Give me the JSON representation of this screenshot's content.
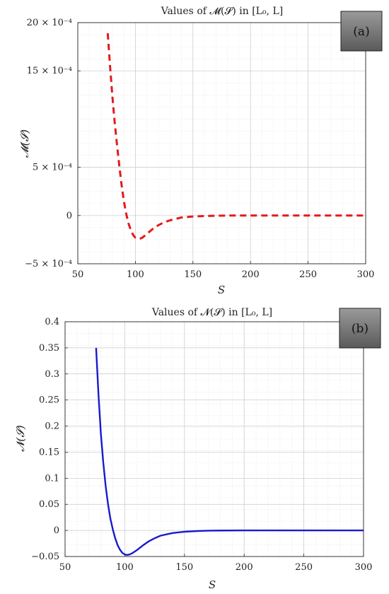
{
  "chart_data": [
    {
      "type": "line",
      "title": "Values of 𝓜(𝓢) in [L₀, L]",
      "panel_label": "(a)",
      "xlabel": "S",
      "ylabel": "𝓜(𝓢)",
      "xlim": [
        50,
        300
      ],
      "ylim": [
        -0.0005,
        0.002
      ],
      "x_ticks": [
        50,
        100,
        150,
        200,
        250,
        300
      ],
      "x_tick_labels": [
        "50",
        "100",
        "150",
        "200",
        "250",
        "300"
      ],
      "y_ticks": [
        -0.0005,
        0,
        0.0005,
        0.0015,
        0.002
      ],
      "y_tick_labels": [
        "−5 × 10⁻⁴",
        "0",
        "5 × 10⁻⁴",
        "15 × 10⁻⁴",
        "20 × 10⁻⁴"
      ],
      "grid": true,
      "series": [
        {
          "color": "#e41a1c",
          "line_style": "dashed",
          "x": [
            76,
            78,
            80,
            82,
            84,
            86,
            88,
            90,
            92,
            94,
            96,
            98,
            100,
            102,
            104,
            106,
            110,
            115,
            120,
            125,
            130,
            140,
            150,
            160,
            170,
            180,
            200,
            220,
            250,
            300
          ],
          "y": [
            0.00189,
            0.00155,
            0.00124,
            0.00097,
            0.00074,
            0.00052,
            0.00032,
            0.00015,
            2e-05,
            -8e-05,
            -0.00015,
            -0.0002,
            -0.00023,
            -0.00024,
            -0.00024,
            -0.00023,
            -0.00019,
            -0.00014,
            -0.0001,
            -7e-05,
            -5e-05,
            -2e-05,
            -1e-05,
            -5e-06,
            -2e-06,
            0,
            0,
            0,
            0,
            0
          ]
        }
      ]
    },
    {
      "type": "line",
      "title": "Values of 𝓝(𝓢) in [L₀, L]",
      "panel_label": "(b)",
      "xlabel": "S",
      "ylabel": "𝓝(𝓢)",
      "xlim": [
        50,
        300
      ],
      "ylim": [
        -0.05,
        0.4
      ],
      "x_ticks": [
        50,
        100,
        150,
        200,
        250,
        300
      ],
      "x_tick_labels": [
        "50",
        "100",
        "150",
        "200",
        "250",
        "300"
      ],
      "y_ticks": [
        -0.05,
        0,
        0.05,
        0.1,
        0.15,
        0.2,
        0.25,
        0.3,
        0.35,
        0.4
      ],
      "y_tick_labels": [
        "−0.05",
        "0",
        "0.05",
        "0.1",
        "0.15",
        "0.2",
        "0.25",
        "0.3",
        "0.35",
        "0.4"
      ],
      "grid": true,
      "series": [
        {
          "color": "#1a1acc",
          "line_style": "solid",
          "x": [
            76,
            78,
            80,
            82,
            84,
            86,
            88,
            90,
            92,
            94,
            96,
            98,
            100,
            102,
            104,
            106,
            110,
            115,
            120,
            125,
            130,
            140,
            150,
            160,
            170,
            180,
            200,
            220,
            250,
            300
          ],
          "y": [
            0.35,
            0.26,
            0.185,
            0.13,
            0.085,
            0.05,
            0.022,
            0.002,
            -0.015,
            -0.028,
            -0.037,
            -0.043,
            -0.046,
            -0.047,
            -0.046,
            -0.044,
            -0.038,
            -0.029,
            -0.021,
            -0.015,
            -0.01,
            -0.005,
            -0.0025,
            -0.0012,
            -0.0005,
            -0.0002,
            0,
            0,
            0,
            0
          ]
        }
      ]
    }
  ]
}
